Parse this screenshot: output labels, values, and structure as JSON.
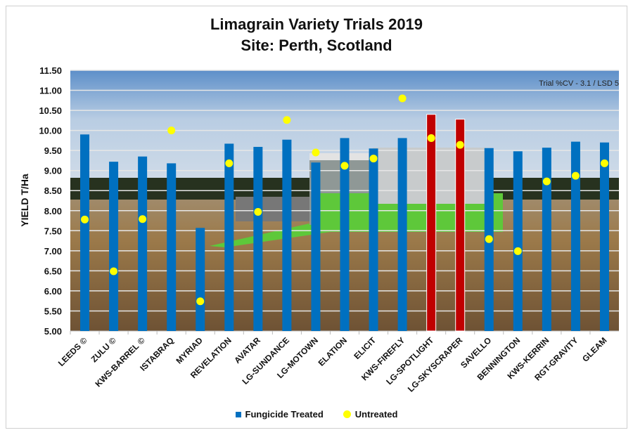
{
  "chart_data": {
    "type": "bar",
    "title": "Limagrain Variety Trials 2019",
    "subtitle": "Site: Perth, Scotland",
    "ylabel": "YIELD T/Ha",
    "xlabel": "",
    "ylim": [
      5.0,
      11.5
    ],
    "yticks": [
      "5.00",
      "5.50",
      "6.00",
      "6.50",
      "7.00",
      "7.50",
      "8.00",
      "8.50",
      "9.00",
      "9.50",
      "10.00",
      "10.50",
      "11.00",
      "11.50"
    ],
    "grid": true,
    "annotation": "Trial %CV - 3.1 / LSD 5",
    "legend_position": "bottom",
    "categories": [
      "LEEDS ©",
      "ZULU ©",
      "KWS-BARREL ©",
      "ISTABRAQ",
      "MYRIAD",
      "REVELATION",
      "AVATAR",
      "LG-SUNDANCE",
      "LG-MOTOWN",
      "ELATION",
      "ELICIT",
      "KWS-FIREFLY",
      "LG-SPOTLIGHT",
      "LG-SKYSCRAPER",
      "SAVELLO",
      "BENNINGTON",
      "KWS-KERRIN",
      "RGT-GRAVITY",
      "GLEAM"
    ],
    "series": [
      {
        "name": "Fungicide Treated",
        "kind": "bar",
        "color": "#0070c0",
        "values": [
          9.9,
          9.22,
          9.35,
          9.18,
          7.57,
          9.67,
          9.59,
          9.77,
          9.2,
          9.81,
          9.55,
          9.81,
          10.4,
          10.28,
          9.56,
          9.48,
          9.57,
          9.72,
          9.7
        ],
        "highlight_color": "#c00000",
        "highlighted": [
          "LG-SPOTLIGHT",
          "LG-SKYSCRAPER"
        ]
      },
      {
        "name": "Untreated",
        "kind": "point",
        "color": "#ffff00",
        "values": [
          7.78,
          6.49,
          7.79,
          10.0,
          5.74,
          9.18,
          7.97,
          10.26,
          9.45,
          9.12,
          9.3,
          10.8,
          9.81,
          9.64,
          7.29,
          6.99,
          8.73,
          8.87,
          9.18
        ]
      }
    ]
  }
}
